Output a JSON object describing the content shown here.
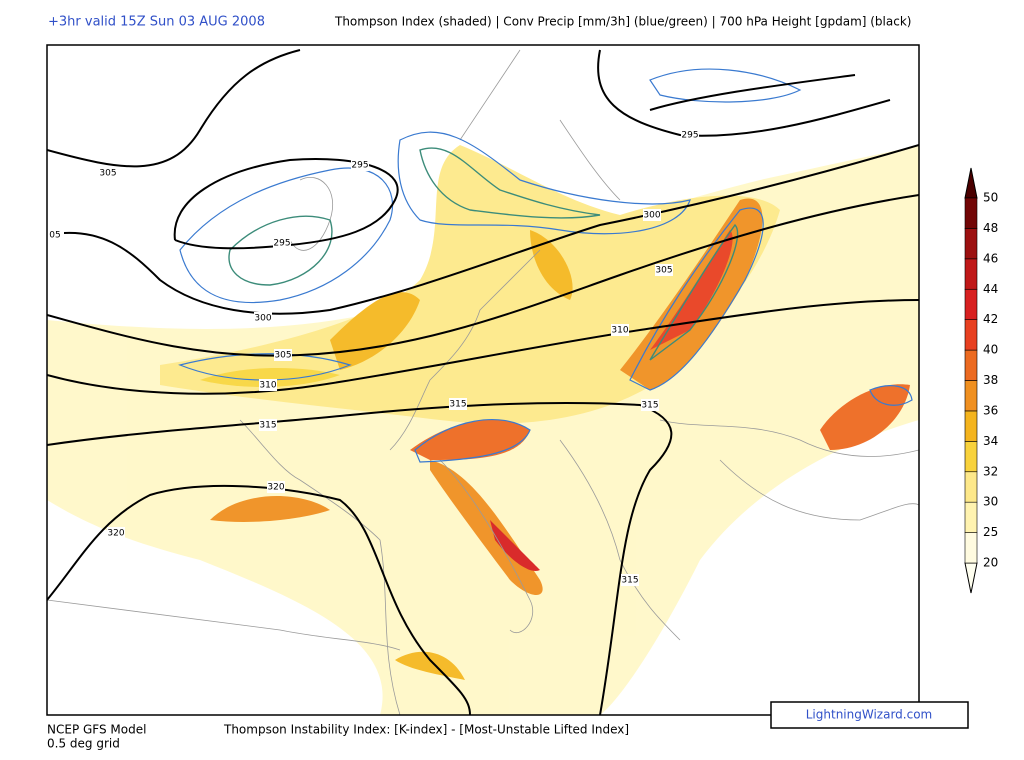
{
  "header": {
    "valid": "+3hr valid 15Z Sun 03 AUG 2008",
    "title": "Thompson Index (shaded) | Conv Precip [mm/3h] (blue/green) | 700 hPa Height [gpdam] (black)"
  },
  "colorbar": {
    "ticks": [
      20,
      25,
      30,
      32,
      34,
      36,
      38,
      40,
      42,
      44,
      46,
      48,
      50
    ]
  },
  "contours": {
    "labels": [
      "305",
      "05",
      "295",
      "300",
      "305",
      "310",
      "315",
      "320",
      "320",
      "295",
      "300",
      "305",
      "310",
      "315",
      "315",
      "295",
      "315"
    ]
  },
  "footer": {
    "model": "NCEP GFS Model",
    "grid": "0.5 deg grid",
    "index": "Thompson Instability Index: [K-index] - [Most-Unstable Lifted Index]",
    "brand": "LightningWizard.com"
  }
}
